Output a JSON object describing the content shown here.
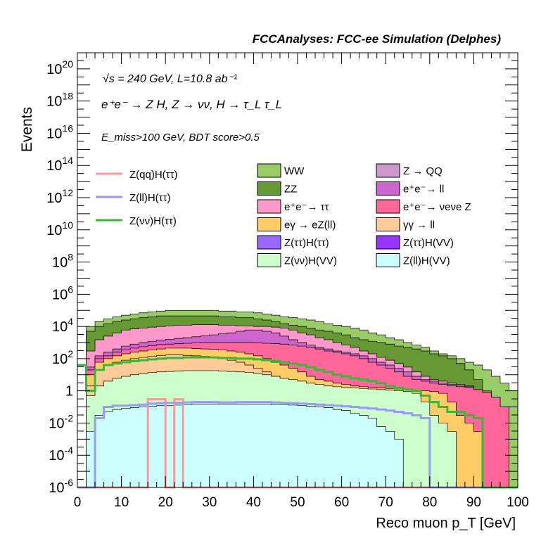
{
  "chart_data": {
    "type": "area",
    "title": "FCCAnalyses: FCC-ee Simulation (Delphes)",
    "xlabel": "Reco muon p_T [GeV]",
    "ylabel": "Events",
    "xlim": [
      0,
      100
    ],
    "ylim": [
      1e-06,
      1e+21
    ],
    "yscale": "log",
    "bin_width": 2,
    "annotations": {
      "line1": "√s = 240 GeV, L=10.8 ab⁻¹",
      "line2": "e⁺e⁻ → Z H, Z → νν, H → τ_L τ_L",
      "line3": "E_miss>100 GeV, BDT score>0.5"
    },
    "x_ticks": [
      "0",
      "10",
      "20",
      "30",
      "40",
      "50",
      "60",
      "70",
      "80",
      "90",
      "100"
    ],
    "y_ticks": [
      "10^-6",
      "10^-4",
      "10^-2",
      "1",
      "10^2",
      "10^4",
      "10^6",
      "10^8",
      "10^10",
      "10^12",
      "10^14",
      "10^16",
      "10^18",
      "10^20"
    ],
    "stack_cumulative_note": "each series lists the cumulative (stacked) top edge per 2 GeV bin, x from 0 to 100",
    "stack": [
      {
        "name": "Z(ll)H(VV)",
        "color": "#ccffff",
        "values": [
          1e-06,
          0.003,
          0.03,
          0.05,
          0.07,
          0.08,
          0.09,
          0.1,
          0.11,
          0.12,
          0.12,
          0.13,
          0.14,
          0.15,
          0.15,
          0.15,
          0.15,
          0.15,
          0.15,
          0.15,
          0.15,
          0.15,
          0.14,
          0.14,
          0.13,
          0.12,
          0.11,
          0.1,
          0.09,
          0.07,
          0.06,
          0.04,
          0.03,
          0.02,
          0.006,
          0.003,
          0.001,
          1e-06,
          1e-06,
          1e-06,
          1e-06,
          1e-06,
          1e-06,
          1e-06,
          1e-06,
          1e-06,
          1e-06,
          1e-06,
          1e-06,
          1e-06
        ]
      },
      {
        "name": "Z(νν)H(VV)",
        "color": "#ccffcc",
        "values": [
          1e-06,
          0.5,
          2,
          4,
          6,
          8,
          10,
          12,
          14,
          15,
          16,
          17,
          18,
          18,
          18,
          18,
          17,
          16,
          15,
          14,
          12,
          10,
          8,
          6,
          5,
          4,
          3,
          2.5,
          2,
          1.8,
          1.6,
          1.5,
          1.4,
          1.3,
          1.2,
          1.1,
          1,
          0.9,
          0.7,
          0.2,
          0.03,
          0.01,
          0.003,
          1e-06,
          1e-06,
          1e-06,
          1e-06,
          1e-06,
          1e-06,
          1e-06
        ]
      },
      {
        "name": "Z(ττ)H(VV)",
        "color": "#9933ff",
        "values": [
          1e-06,
          1e-06,
          1e-06,
          1e-06,
          1e-06,
          1e-06,
          1e-06,
          1e-06,
          1e-06,
          1e-06,
          1e-06,
          1e-06,
          1e-06,
          1e-06,
          1e-06,
          1e-06,
          1e-06,
          1e-06,
          1e-06,
          1e-06,
          1e-06,
          1e-06,
          1e-06,
          1e-06,
          1e-06,
          1e-06,
          1e-06,
          1e-06,
          1e-06,
          1e-06,
          1e-06,
          1e-06,
          1e-06,
          1e-06,
          1e-06,
          1e-06,
          1e-06,
          1e-06,
          1e-06,
          1e-06,
          1e-06,
          1e-06,
          1e-06,
          1e-06,
          1e-06,
          1e-06,
          1e-06,
          1e-06,
          1e-06,
          1e-06
        ]
      },
      {
        "name": "Z(ττ)H(ττ)",
        "color": "#9966ff",
        "values": [
          1e-06,
          1e-06,
          1e-06,
          1e-06,
          1e-06,
          1e-06,
          1e-06,
          1e-06,
          1e-06,
          1e-06,
          1e-06,
          1e-06,
          1e-06,
          1e-06,
          1e-06,
          1e-06,
          1e-06,
          1e-06,
          1e-06,
          1e-06,
          1e-06,
          1e-06,
          1e-06,
          1e-06,
          1e-06,
          1e-06,
          1e-06,
          1e-06,
          1e-06,
          1e-06,
          1e-06,
          1e-06,
          1e-06,
          1e-06,
          1e-06,
          1e-06,
          1e-06,
          1e-06,
          1e-06,
          1e-06,
          1e-06,
          1e-06,
          1e-06,
          1e-06,
          1e-06,
          1e-06,
          1e-06,
          1e-06,
          1e-06,
          1e-06
        ]
      },
      {
        "name": "γγ → ll",
        "color": "#ffcc99",
        "values": [
          1e-06,
          2,
          20,
          40,
          60,
          80,
          100,
          120,
          140,
          160,
          170,
          170,
          160,
          150,
          140,
          120,
          100,
          80,
          60,
          40,
          25,
          15,
          8,
          5,
          4,
          3,
          2.5,
          2,
          1.8,
          1.6,
          1.5,
          1.4,
          1.3,
          1.2,
          1.1,
          1,
          0.9,
          0.7,
          0.2,
          0.03,
          0.01,
          0.003,
          1e-06,
          1e-06,
          1e-06,
          1e-06,
          1e-06,
          1e-06,
          1e-06,
          1e-06
        ]
      },
      {
        "name": "eγ → eZ(ll)",
        "color": "#ffcc66",
        "values": [
          1e-06,
          10,
          60,
          100,
          150,
          200,
          250,
          300,
          350,
          400,
          450,
          450,
          450,
          420,
          400,
          380,
          350,
          300,
          250,
          200,
          150,
          100,
          60,
          40,
          25,
          15,
          8,
          5,
          4,
          3,
          2.5,
          2,
          1.8,
          1.6,
          1.5,
          1.4,
          1.3,
          1.2,
          1.1,
          1,
          0.9,
          0.7,
          0.2,
          0.03,
          0.01,
          0.003,
          1e-06,
          1e-06,
          1e-06,
          1e-06
        ]
      },
      {
        "name": "e⁺e⁻ → νeνe Z",
        "color": "#ff6699",
        "values": [
          1e-06,
          20,
          100,
          150,
          250,
          350,
          450,
          550,
          650,
          750,
          800,
          850,
          900,
          950,
          1000,
          1000,
          1000,
          1000,
          1000,
          1000,
          950,
          900,
          850,
          800,
          700,
          600,
          500,
          400,
          300,
          250,
          200,
          150,
          100,
          60,
          40,
          25,
          15,
          8,
          5,
          4,
          3,
          2.5,
          2,
          1.8,
          1.6,
          1.2,
          0.8,
          0.4,
          0.1,
          1e-06
        ]
      },
      {
        "name": "e⁺e⁻ → ll",
        "color": "#cc66cc",
        "values": [
          1e-06,
          30,
          150,
          250,
          400,
          600,
          800,
          1000,
          1200,
          1400,
          1600,
          1800,
          2000,
          2300,
          2600,
          3000,
          3500,
          4000,
          5000,
          6000,
          6000,
          5000,
          4000,
          2500,
          1500,
          1000,
          700,
          500,
          400,
          300,
          250,
          200,
          150,
          100,
          60,
          40,
          25,
          15,
          8,
          5,
          4,
          3,
          2.5,
          2,
          1.8,
          1.2,
          0.8,
          0.4,
          0.1,
          1e-06
        ]
      },
      {
        "name": "Z → QQ",
        "color": "#cc99cc",
        "values": [
          1e-06,
          1e-06,
          1e-06,
          1e-06,
          1e-06,
          1e-06,
          1e-06,
          1e-06,
          1e-06,
          1e-06,
          1e-06,
          1e-06,
          1e-06,
          1e-06,
          1e-06,
          1e-06,
          1e-06,
          1e-06,
          1e-06,
          1e-06,
          1e-06,
          1e-06,
          1e-06,
          1e-06,
          1e-06,
          1e-06,
          1e-06,
          1e-06,
          1e-06,
          1e-06,
          1e-06,
          1e-06,
          1e-06,
          1e-06,
          1e-06,
          1e-06,
          1e-06,
          1e-06,
          1e-06,
          1e-06,
          1e-06,
          1e-06,
          1e-06,
          1e-06,
          1e-06,
          1e-06,
          1e-06,
          1e-06,
          1e-06,
          1e-06
        ]
      },
      {
        "name": "e⁺e⁻ → ττ",
        "color": "#ff99cc",
        "values": [
          1e-06,
          300,
          1500,
          2500,
          4000,
          6000,
          7000,
          8000,
          9000,
          10000,
          11000,
          12000,
          12000,
          13000,
          13000,
          13000,
          12000,
          12000,
          11000,
          11000,
          10000,
          10000,
          9000,
          8000,
          6000,
          4000,
          3000,
          2000,
          1500,
          1000,
          700,
          500,
          300,
          200,
          120,
          80,
          50,
          30,
          15,
          8,
          5,
          4,
          3,
          2.5,
          2,
          1.2,
          0.8,
          0.4,
          0.1,
          1e-06
        ]
      },
      {
        "name": "ZZ",
        "color": "#669933",
        "values": [
          1e-06,
          5000,
          10000,
          15000,
          20000,
          25000,
          30000,
          35000,
          40000,
          45000,
          45000,
          45000,
          45000,
          45000,
          45000,
          45000,
          40000,
          40000,
          35000,
          35000,
          30000,
          25000,
          20000,
          15000,
          12000,
          10000,
          8000,
          6000,
          5000,
          4000,
          3000,
          2000,
          1500,
          1200,
          1000,
          800,
          600,
          500,
          400,
          300,
          200,
          150,
          100,
          50,
          20,
          5,
          1,
          0.1,
          0.01,
          1e-06
        ]
      },
      {
        "name": "WW",
        "color": "#99cc66",
        "values": [
          1e-06,
          10000,
          20000,
          30000,
          40000,
          50000,
          60000,
          70000,
          80000,
          90000,
          100000,
          100000,
          100000,
          100000,
          100000,
          100000,
          90000,
          90000,
          80000,
          80000,
          70000,
          60000,
          50000,
          40000,
          35000,
          30000,
          25000,
          20000,
          15000,
          12000,
          10000,
          8000,
          6000,
          4000,
          3000,
          2000,
          1500,
          1000,
          700,
          500,
          300,
          200,
          150,
          100,
          60,
          40,
          20,
          8,
          3,
          1
        ]
      }
    ],
    "signal_lines": [
      {
        "name": "Z(qq)H(ττ)",
        "color": "#ff9999",
        "values": [
          1e-06,
          1e-06,
          1e-06,
          1e-06,
          1e-06,
          1e-06,
          1e-06,
          1e-06,
          0.3,
          0.3,
          1e-06,
          0.3,
          1e-06,
          1e-06,
          1e-06,
          1e-06,
          1e-06,
          1e-06,
          1e-06,
          1e-06,
          1e-06,
          1e-06,
          1e-06,
          1e-06,
          1e-06,
          1e-06,
          1e-06,
          1e-06,
          1e-06,
          1e-06,
          1e-06,
          1e-06,
          1e-06,
          1e-06,
          1e-06,
          1e-06,
          1e-06,
          1e-06,
          1e-06,
          1e-06,
          1e-06,
          1e-06,
          1e-06,
          1e-06,
          1e-06,
          1e-06,
          1e-06,
          1e-06,
          1e-06,
          1e-06
        ]
      },
      {
        "name": "Z(ll)H(ττ)",
        "color": "#9999ff",
        "values": [
          1e-06,
          1e-06,
          0.02,
          0.1,
          0.12,
          0.12,
          0.13,
          0.14,
          0.16,
          0.17,
          0.18,
          0.18,
          0.19,
          0.2,
          0.2,
          0.2,
          0.19,
          0.19,
          0.2,
          0.2,
          0.2,
          0.2,
          0.19,
          0.18,
          0.17,
          0.16,
          0.15,
          0.14,
          0.13,
          0.12,
          0.11,
          0.1,
          0.09,
          0.08,
          0.07,
          0.06,
          0.05,
          0.04,
          0.03,
          0.02,
          1e-06,
          1e-06,
          1e-06,
          1e-06,
          1e-06,
          1e-06,
          1e-06,
          1e-06,
          1e-06,
          1e-06
        ]
      },
      {
        "name": "Z(νν)H(ττ)",
        "color": "#33bb33",
        "values": [
          40,
          1,
          20,
          40,
          50,
          60,
          70,
          80,
          90,
          100,
          110,
          110,
          120,
          120,
          120,
          120,
          110,
          110,
          100,
          100,
          90,
          80,
          70,
          60,
          50,
          40,
          30,
          20,
          15,
          10,
          8,
          6,
          5,
          4,
          3,
          2,
          1.5,
          1.2,
          1,
          0.5,
          0.2,
          0.1,
          0.05,
          0.05,
          0.03,
          0.02,
          1e-06,
          1e-06,
          1e-06,
          1e-06
        ]
      }
    ],
    "legend": {
      "lines": [
        "Z(qq)H(ττ)",
        "Z(ll)H(ττ)",
        "Z(νν)H(ττ)"
      ],
      "boxes_col1": [
        "WW",
        "ZZ",
        "e⁺e⁻→ ττ",
        "eγ → eZ(ll)",
        "Z(ττ)H(ττ)",
        "Z(νν)H(VV)"
      ],
      "boxes_col2": [
        "Z → QQ",
        "e⁺e⁻→ ll",
        "e⁺e⁻→ νeνe Z",
        "γγ → ll",
        "Z(ττ)H(VV)",
        "Z(ll)H(VV)"
      ]
    },
    "legend_colors": {
      "WW": "#99cc66",
      "ZZ": "#669933",
      "e⁺e⁻→ ττ": "#ff99cc",
      "eγ → eZ(ll)": "#ffcc66",
      "Z(ττ)H(ττ)": "#9966ff",
      "Z(νν)H(VV)": "#ccffcc",
      "Z → QQ": "#cc99cc",
      "e⁺e⁻→ ll": "#cc66cc",
      "e⁺e⁻→ νeνe Z": "#ff6699",
      "γγ → ll": "#ffcc99",
      "Z(ττ)H(VV)": "#9933ff",
      "Z(ll)H(VV)": "#ccffff"
    }
  }
}
